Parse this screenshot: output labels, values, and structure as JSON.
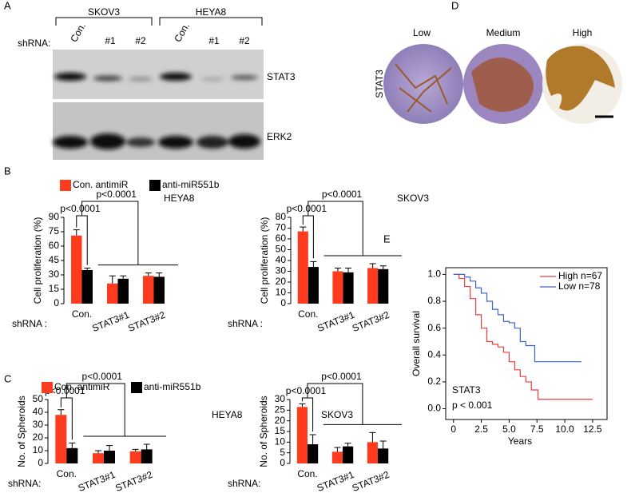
{
  "panel_labels": [
    "A",
    "B",
    "C",
    "D",
    "E"
  ],
  "blot": {
    "cell_lines": [
      "SKOV3",
      "HEYA8"
    ],
    "shrna_label": "shRNA:",
    "lanes": [
      "Con.",
      "#1",
      "#2",
      "Con.",
      "#1",
      "#2"
    ],
    "bands": [
      "STAT3",
      "ERK2"
    ]
  },
  "ihc": {
    "row_label": "STAT3",
    "levels": [
      "Low",
      "Medium",
      "High"
    ]
  },
  "chart_data": [
    {
      "type": "bar",
      "title": "HEYA8",
      "ylabel": "Cell proliferation (%)",
      "xlabel": "shRNA :",
      "categories": [
        "Con.",
        "STAT3#1",
        "STAT3#2"
      ],
      "series": [
        {
          "name": "Con. antimiR",
          "color": "#ff3b1f",
          "values": [
            71,
            21,
            29
          ],
          "errors": [
            6,
            8,
            3
          ]
        },
        {
          "name": "anti-miR551b",
          "color": "#000000",
          "values": [
            35,
            26,
            28
          ],
          "errors": [
            2,
            3,
            4
          ]
        }
      ],
      "ylim": [
        0,
        90
      ],
      "yticks": [
        0,
        15,
        30,
        45,
        60,
        75,
        90
      ],
      "annotations": [
        "p<0.0001",
        "p<0.0001"
      ]
    },
    {
      "type": "bar",
      "title": "SKOV3",
      "ylabel": "Cell proliferation (%)",
      "xlabel": "shRNA :",
      "categories": [
        "Con.",
        "STAT3#1",
        "STAT3#2"
      ],
      "series": [
        {
          "color": "#ff3b1f",
          "values": [
            67,
            30,
            33
          ],
          "errors": [
            4,
            3,
            4
          ]
        },
        {
          "color": "#000000",
          "values": [
            34,
            29,
            32
          ],
          "errors": [
            5,
            4,
            3
          ]
        }
      ],
      "ylim": [
        0,
        80
      ],
      "yticks": [
        0,
        10,
        20,
        30,
        40,
        50,
        60,
        70,
        80
      ],
      "annotations": [
        "p<0.0001",
        "p<0.0001"
      ]
    },
    {
      "type": "bar",
      "title": "HEYA8",
      "ylabel": "No. of Spheroids",
      "xlabel": "shRNA:",
      "categories": [
        "Con.",
        "STAT3#1",
        "STAT3#2"
      ],
      "series": [
        {
          "name": "Con. antimiR",
          "color": "#ff3b1f",
          "values": [
            38,
            8,
            9.5
          ],
          "errors": [
            4,
            2,
            1.5
          ]
        },
        {
          "name": "anti-miR551b",
          "color": "#000000",
          "values": [
            12,
            10,
            11
          ],
          "errors": [
            4,
            4,
            4
          ]
        }
      ],
      "ylim": [
        0,
        50
      ],
      "yticks": [
        0,
        10,
        20,
        30,
        40,
        50
      ],
      "annotations": [
        "p<0.0001",
        "p<0.0001"
      ]
    },
    {
      "type": "bar",
      "title": "SKOV3",
      "ylabel": "No. of Spheroids",
      "xlabel": "shRNA:",
      "categories": [
        "Con.",
        "STAT3#1",
        "STAT3#2"
      ],
      "series": [
        {
          "color": "#ff3b1f",
          "values": [
            26.5,
            5.5,
            10
          ],
          "errors": [
            1.5,
            2,
            4.5
          ]
        },
        {
          "color": "#000000",
          "values": [
            9,
            8,
            7
          ],
          "errors": [
            4.5,
            1.5,
            3.5
          ]
        }
      ],
      "ylim": [
        0,
        30
      ],
      "yticks": [
        0,
        5,
        10,
        15,
        20,
        25,
        30
      ],
      "annotations": [
        "p<0.0001",
        "p<0.0001"
      ]
    },
    {
      "type": "line",
      "drawstyle": "steps-post",
      "xlabel": "Years",
      "ylabel": "Overall survival",
      "annotations": [
        "STAT3",
        "p < 0.001"
      ],
      "series": [
        {
          "name": "High n=67",
          "color": "#f03c3c",
          "x": [
            0,
            0.5,
            1,
            1.5,
            2,
            2.5,
            3,
            3.5,
            4,
            4.5,
            5,
            5.5,
            6,
            6.5,
            7,
            7.6,
            12.5
          ],
          "values": [
            1,
            0.97,
            0.91,
            0.82,
            0.7,
            0.6,
            0.5,
            0.48,
            0.46,
            0.42,
            0.35,
            0.29,
            0.24,
            0.2,
            0.14,
            0.07,
            0.07
          ]
        },
        {
          "name": "Low n=78",
          "color": "#3c64c8",
          "x": [
            0,
            1,
            1.5,
            2,
            2.5,
            3,
            3.5,
            4,
            4.5,
            5,
            5.5,
            6,
            6.5,
            7.3,
            11.5
          ],
          "values": [
            1,
            0.98,
            0.95,
            0.9,
            0.86,
            0.8,
            0.74,
            0.7,
            0.65,
            0.64,
            0.6,
            0.5,
            0.47,
            0.35,
            0.35
          ]
        }
      ],
      "xlim": [
        -0.7,
        13.8
      ],
      "ylim": [
        -0.08,
        1.05
      ],
      "xticks": [
        0,
        2.5,
        {
          "value": 5,
          "label": "5.0"
        },
        7.5,
        {
          "value": 10,
          "label": "10.0"
        },
        12.5
      ],
      "yticks": [
        {
          "value": 0,
          "label": "0.0"
        },
        0.2,
        0.4,
        0.6,
        0.8,
        {
          "value": 1,
          "label": "1.0"
        }
      ]
    }
  ]
}
